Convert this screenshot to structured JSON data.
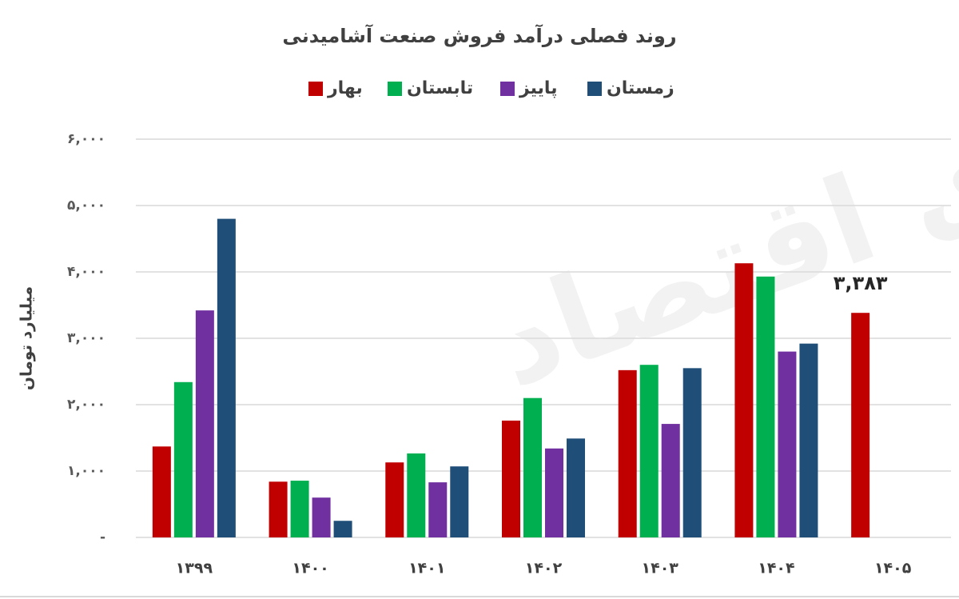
{
  "chart_data": {
    "type": "bar",
    "title": "روند فصلی درآمد فروش صنعت آشامیدنی",
    "y_label": "میلیارد تومان",
    "watermark": "دنیای اقتصاد",
    "categories": [
      "۱۳۹۹",
      "۱۴۰۰",
      "۱۴۰۱",
      "۱۴۰۲",
      "۱۴۰۳",
      "۱۴۰۴",
      "۱۴۰۵"
    ],
    "series": [
      {
        "name": "بهار",
        "color": "#c00000",
        "values": [
          1370,
          840,
          1130,
          1760,
          2520,
          4130,
          3383
        ],
        "value_labels": [
          null,
          null,
          null,
          null,
          null,
          null,
          "۳,۳۸۳"
        ]
      },
      {
        "name": "تابستان",
        "color": "#00b050",
        "values": [
          2340,
          855,
          1265,
          2100,
          2600,
          3930,
          null
        ]
      },
      {
        "name": "پاییز",
        "color": "#7030a0",
        "values": [
          3420,
          600,
          830,
          1340,
          1710,
          2800,
          null
        ]
      },
      {
        "name": "زمستان",
        "color": "#1f4e79",
        "values": [
          4800,
          250,
          1070,
          1490,
          2550,
          2920,
          null
        ]
      }
    ],
    "ylim": [
      0,
      6000
    ],
    "yticks": [
      {
        "value": 0,
        "label": "-"
      },
      {
        "value": 1000,
        "label": "۱,۰۰۰"
      },
      {
        "value": 2000,
        "label": "۲,۰۰۰"
      },
      {
        "value": 3000,
        "label": "۳,۰۰۰"
      },
      {
        "value": 4000,
        "label": "۴,۰۰۰"
      },
      {
        "value": 5000,
        "label": "۵,۰۰۰"
      },
      {
        "value": 6000,
        "label": "۶,۰۰۰"
      }
    ],
    "grid": true,
    "legend": "top"
  }
}
